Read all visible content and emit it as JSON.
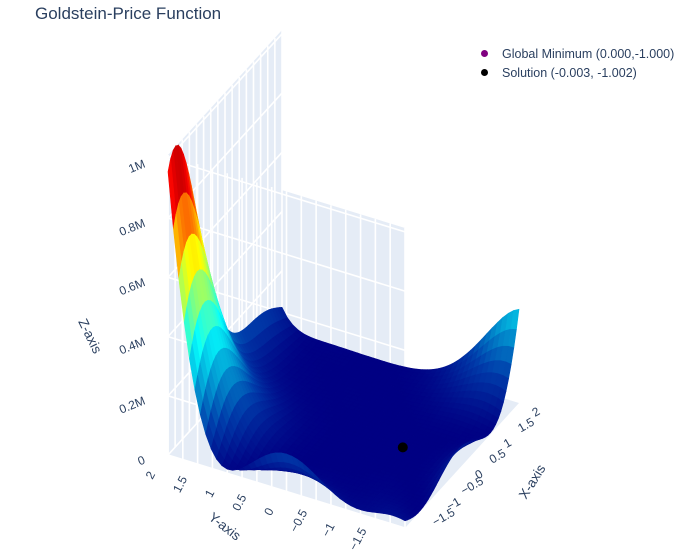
{
  "title": "Goldstein-Price Function",
  "legend": {
    "items": [
      {
        "label": "Global Minimum (0.000,-1.000)",
        "color": "#800080"
      },
      {
        "label": "Solution (-0.003, -1.002)",
        "color": "#000000"
      }
    ]
  },
  "chart_data": {
    "type": "surface",
    "title": "Goldstein-Price Function",
    "function": "Goldstein-Price",
    "colorscale": "Jet",
    "xlabel": "X-axis",
    "ylabel": "Y-axis",
    "zlabel": "Z-axis",
    "xlim": [
      -2,
      2
    ],
    "ylim": [
      -2,
      2
    ],
    "zlim": [
      0,
      1013227
    ],
    "x_ticks": [
      "2",
      "1.5",
      "1",
      "0.5",
      "0",
      "−0.5",
      "−1",
      "−1.5"
    ],
    "y_ticks": [
      "2",
      "1.5",
      "1",
      "0.5",
      "0",
      "−0.5",
      "−1",
      "−1.5"
    ],
    "z_ticks": [
      "0",
      "0.2M",
      "0.4M",
      "0.6M",
      "0.8M",
      "1M"
    ],
    "z_tick_values": [
      0,
      200000,
      400000,
      600000,
      800000,
      1000000
    ],
    "points": [
      {
        "name": "Global Minimum (0.000,-1.000)",
        "x": 0.0,
        "y": -1.0,
        "z": 3.0,
        "color": "#800080"
      },
      {
        "name": "Solution (-0.003, -1.002)",
        "x": -0.003,
        "y": -1.002,
        "z": 3.0,
        "color": "#000000"
      }
    ]
  }
}
